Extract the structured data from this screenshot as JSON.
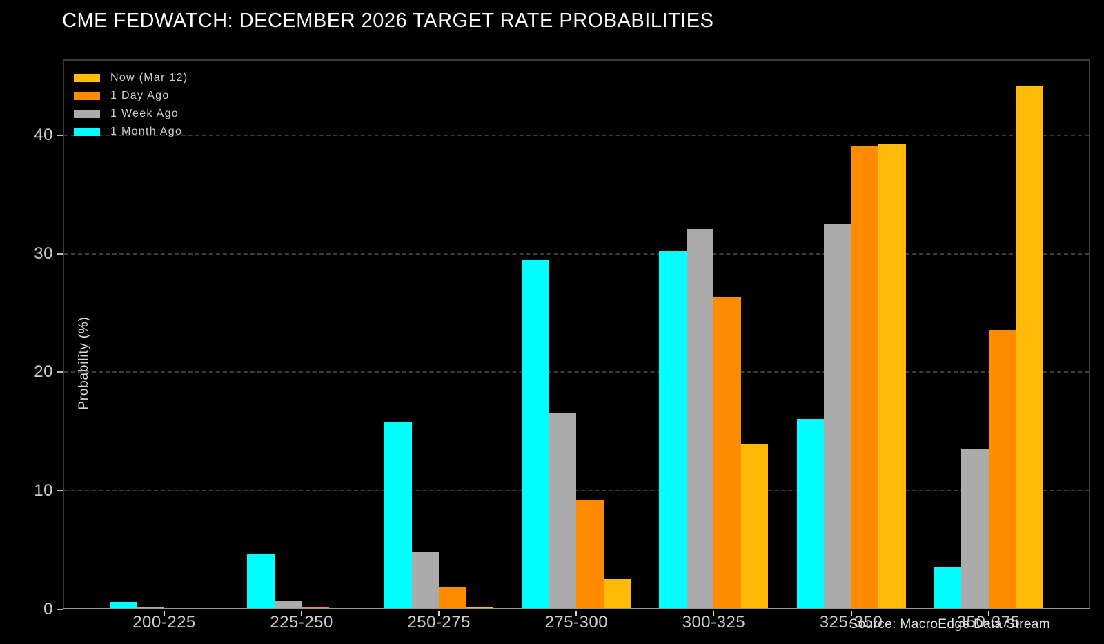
{
  "title": "CME FEDWATCH: DECEMBER 2026 TARGET RATE PROBABILITIES",
  "source": "Source: MacroEdge Data Stream",
  "colors": {
    "background": "#000000",
    "now": "#FFBA08",
    "day_ago": "#FF8C00",
    "week_ago": "#ABABAB",
    "month_ago": "#00FFFF",
    "grid": "#3A3A3A",
    "tick_text": "#CCCCCC",
    "title_text": "#FAFAFA"
  },
  "chart_data": {
    "type": "bar",
    "title": "CME FEDWATCH: DECEMBER 2026 TARGET RATE PROBABILITIES",
    "xlabel": "",
    "ylabel": "Probability (%)",
    "categories": [
      "200-225",
      "225-250",
      "250-275",
      "275-300",
      "300-325",
      "325-350",
      "350-375"
    ],
    "series": [
      {
        "name": "Now (Mar 12)",
        "color": "#FFBA08",
        "values": [
          0,
          0,
          0.2,
          2.5,
          13.9,
          39.2,
          44.1
        ]
      },
      {
        "name": "1 Day Ago",
        "color": "#FF8C00",
        "values": [
          0,
          0.2,
          1.8,
          9.2,
          26.3,
          39.0,
          23.5
        ]
      },
      {
        "name": "1 Week Ago",
        "color": "#ABABAB",
        "values": [
          0.1,
          0.7,
          4.8,
          16.5,
          32.0,
          32.5,
          13.5
        ]
      },
      {
        "name": "1 Month Ago",
        "color": "#00FFFF",
        "values": [
          0.6,
          4.6,
          15.7,
          29.4,
          30.2,
          16.0,
          3.5
        ]
      }
    ],
    "yticks": [
      0,
      10,
      20,
      30,
      40
    ],
    "ylim": [
      0,
      46.4
    ],
    "grid": "horizontal-dashed",
    "legend_position": "upper-left",
    "annotation": "Source: MacroEdge Data Stream"
  }
}
